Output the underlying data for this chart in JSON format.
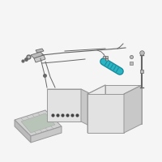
{
  "bg_color": "#f5f5f5",
  "highlight_color": "#2ab5c5",
  "highlight_dark": "#1a8a9a",
  "line_color": "#aaaaaa",
  "dark_color": "#666666",
  "darker_color": "#444444",
  "light_gray": "#d8d8d8",
  "medium_gray": "#bbbbbb",
  "box_face_front": "#e2e2e2",
  "box_face_top": "#ebebeb",
  "box_face_side": "#c8c8c8",
  "box_edge": "#999999",
  "tray_face": "#d0d0d0",
  "tray_inner": "#b8c4b8"
}
